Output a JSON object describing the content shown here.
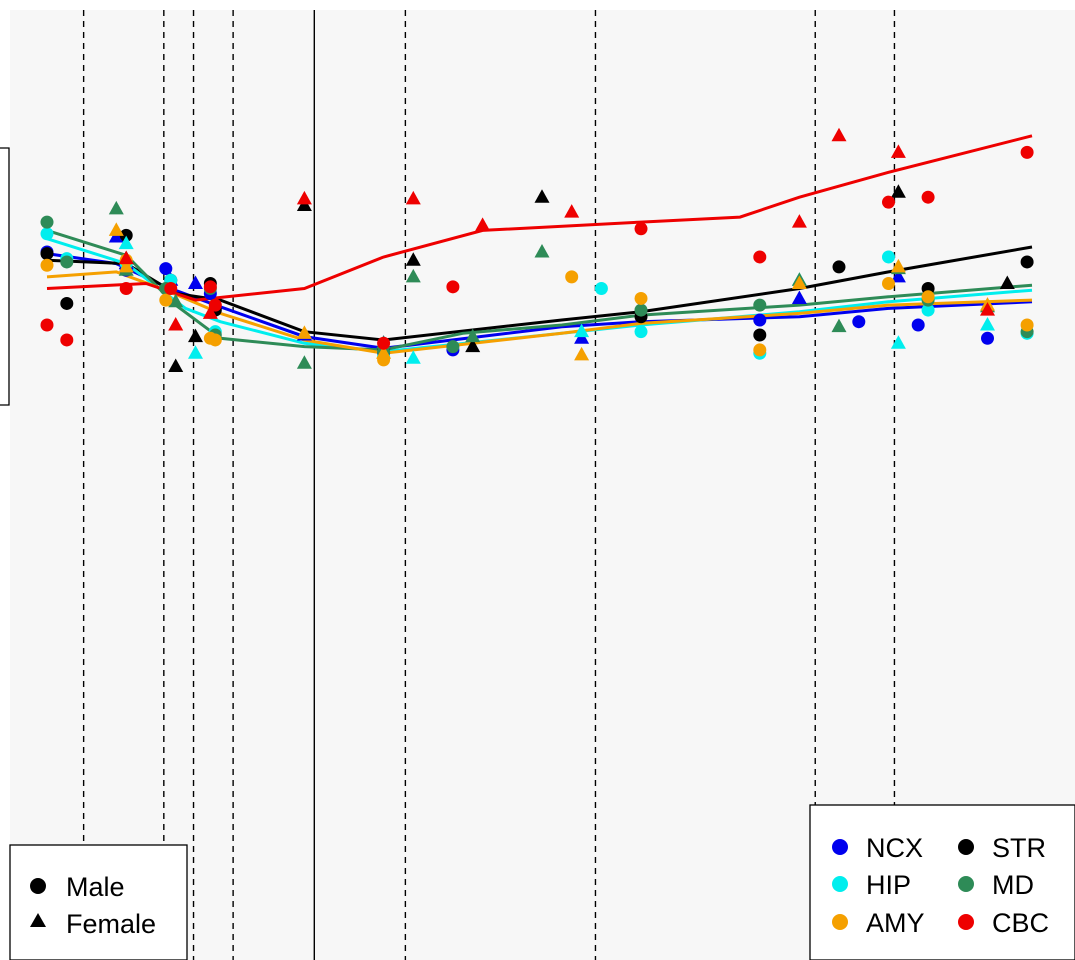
{
  "chart_data": {
    "type": "scatter",
    "title": "",
    "xlabel": "",
    "ylabel": "",
    "xlim": [
      0,
      1000
    ],
    "ylim": [
      -100,
      100
    ],
    "grid": false,
    "vlines_dashed": [
      37,
      118,
      148,
      188,
      362,
      554,
      776,
      856
    ],
    "vline_solid": 270,
    "shape_legend": {
      "placement": "bottom-left",
      "entries": [
        {
          "label": "Male",
          "shape": "circle"
        },
        {
          "label": "Female",
          "shape": "triangle"
        }
      ]
    },
    "color_legend": {
      "placement": "bottom-right",
      "entries": [
        {
          "label": "NCX",
          "color": "#0000ee"
        },
        {
          "label": "STR",
          "color": "#000000"
        },
        {
          "label": "HIP",
          "color": "#00eeee"
        },
        {
          "label": "MD",
          "color": "#2e8b57"
        },
        {
          "label": "AMY",
          "color": "#f5a000"
        },
        {
          "label": "CBC",
          "color": "#ee0000"
        }
      ]
    },
    "series": [
      {
        "name": "NCX",
        "color": "#0000ee",
        "trend": [
          [
            0,
            46
          ],
          [
            70,
            40
          ],
          [
            120,
            26
          ],
          [
            175,
            14
          ],
          [
            260,
            -4
          ],
          [
            340,
            -11
          ],
          [
            520,
            2
          ],
          [
            600,
            5
          ],
          [
            760,
            8
          ],
          [
            850,
            13
          ],
          [
            995,
            17
          ]
        ],
        "male": [
          [
            0,
            47
          ],
          [
            80,
            36
          ],
          [
            120,
            37
          ],
          [
            165,
            22
          ],
          [
            340,
            -14
          ],
          [
            410,
            -12
          ],
          [
            720,
            6
          ],
          [
            820,
            5
          ],
          [
            880,
            3
          ],
          [
            950,
            -5
          ]
        ],
        "female": [
          [
            70,
            56
          ],
          [
            80,
            40
          ],
          [
            125,
            30
          ],
          [
            150,
            28
          ],
          [
            260,
            -3
          ],
          [
            340,
            -8
          ],
          [
            540,
            -5
          ],
          [
            760,
            19
          ],
          [
            860,
            32
          ]
        ]
      },
      {
        "name": "STR",
        "color": "#000000",
        "trend": [
          [
            0,
            42
          ],
          [
            80,
            40
          ],
          [
            130,
            22
          ],
          [
            175,
            18
          ],
          [
            260,
            -1
          ],
          [
            340,
            -6
          ],
          [
            520,
            6
          ],
          [
            600,
            11
          ],
          [
            760,
            25
          ],
          [
            850,
            35
          ],
          [
            995,
            50
          ]
        ],
        "male": [
          [
            0,
            46
          ],
          [
            20,
            16
          ],
          [
            80,
            57
          ],
          [
            125,
            30
          ],
          [
            165,
            28
          ],
          [
            170,
            12
          ],
          [
            340,
            -11
          ],
          [
            600,
            8
          ],
          [
            720,
            -3
          ],
          [
            800,
            38
          ],
          [
            890,
            25
          ],
          [
            990,
            41
          ]
        ],
        "female": [
          [
            80,
            43
          ],
          [
            130,
            -22
          ],
          [
            150,
            -4
          ],
          [
            260,
            75
          ],
          [
            370,
            42
          ],
          [
            430,
            -10
          ],
          [
            500,
            80
          ],
          [
            860,
            83
          ],
          [
            970,
            28
          ]
        ]
      },
      {
        "name": "HIP",
        "color": "#00eeee",
        "trend": [
          [
            0,
            55
          ],
          [
            80,
            40
          ],
          [
            140,
            13
          ],
          [
            175,
            5
          ],
          [
            260,
            -8
          ],
          [
            340,
            -13
          ],
          [
            520,
            -2
          ],
          [
            600,
            3
          ],
          [
            760,
            11
          ],
          [
            850,
            17
          ],
          [
            995,
            24
          ]
        ],
        "male": [
          [
            0,
            58
          ],
          [
            20,
            43
          ],
          [
            80,
            40
          ],
          [
            125,
            30
          ],
          [
            170,
            -1
          ],
          [
            340,
            -16
          ],
          [
            560,
            25
          ],
          [
            600,
            -1
          ],
          [
            720,
            -14
          ],
          [
            850,
            44
          ],
          [
            890,
            12
          ],
          [
            990,
            -2
          ]
        ],
        "female": [
          [
            80,
            52
          ],
          [
            150,
            -14
          ],
          [
            370,
            -17
          ],
          [
            540,
            -1
          ],
          [
            760,
            30
          ],
          [
            860,
            -8
          ],
          [
            950,
            3
          ]
        ]
      },
      {
        "name": "MD",
        "color": "#2e8b57",
        "trend": [
          [
            0,
            60
          ],
          [
            80,
            45
          ],
          [
            130,
            15
          ],
          [
            175,
            -5
          ],
          [
            260,
            -10
          ],
          [
            340,
            -12
          ],
          [
            420,
            -2
          ],
          [
            520,
            3
          ],
          [
            600,
            9
          ],
          [
            760,
            15
          ],
          [
            850,
            20
          ],
          [
            995,
            27
          ]
        ],
        "male": [
          [
            0,
            65
          ],
          [
            20,
            41
          ],
          [
            120,
            25
          ],
          [
            165,
            25
          ],
          [
            170,
            -3
          ],
          [
            340,
            -13
          ],
          [
            410,
            -10
          ],
          [
            600,
            12
          ],
          [
            720,
            15
          ],
          [
            890,
            18
          ],
          [
            990,
            -1
          ]
        ],
        "female": [
          [
            70,
            73
          ],
          [
            80,
            36
          ],
          [
            130,
            17
          ],
          [
            260,
            -20
          ],
          [
            340,
            -8
          ],
          [
            370,
            32
          ],
          [
            430,
            -4
          ],
          [
            500,
            47
          ],
          [
            760,
            30
          ],
          [
            800,
            2
          ],
          [
            860,
            37
          ],
          [
            950,
            14
          ]
        ]
      },
      {
        "name": "AMY",
        "color": "#f5a000",
        "trend": [
          [
            0,
            32
          ],
          [
            70,
            35
          ],
          [
            120,
            24
          ],
          [
            175,
            10
          ],
          [
            260,
            -6
          ],
          [
            340,
            -14
          ],
          [
            520,
            -2
          ],
          [
            600,
            4
          ],
          [
            760,
            10
          ],
          [
            850,
            15
          ],
          [
            995,
            18
          ]
        ],
        "male": [
          [
            0,
            39
          ],
          [
            80,
            42
          ],
          [
            120,
            18
          ],
          [
            165,
            -5
          ],
          [
            170,
            -6
          ],
          [
            340,
            -18
          ],
          [
            530,
            32
          ],
          [
            600,
            19
          ],
          [
            720,
            -12
          ],
          [
            850,
            28
          ],
          [
            890,
            20
          ],
          [
            990,
            3
          ]
        ],
        "female": [
          [
            70,
            60
          ],
          [
            80,
            38
          ],
          [
            260,
            -2
          ],
          [
            340,
            -14
          ],
          [
            540,
            -15
          ],
          [
            760,
            28
          ],
          [
            860,
            38
          ],
          [
            950,
            15
          ]
        ]
      },
      {
        "name": "CBC",
        "color": "#ee0000",
        "trend": [
          [
            0,
            25
          ],
          [
            100,
            28
          ],
          [
            150,
            18
          ],
          [
            260,
            25
          ],
          [
            340,
            44
          ],
          [
            440,
            60
          ],
          [
            600,
            65
          ],
          [
            700,
            68
          ],
          [
            760,
            80
          ],
          [
            850,
            95
          ],
          [
            995,
            117
          ]
        ],
        "male": [
          [
            0,
            3
          ],
          [
            20,
            -6
          ],
          [
            80,
            25
          ],
          [
            125,
            25
          ],
          [
            165,
            26
          ],
          [
            170,
            15
          ],
          [
            340,
            -8
          ],
          [
            410,
            26
          ],
          [
            600,
            61
          ],
          [
            720,
            44
          ],
          [
            850,
            77
          ],
          [
            890,
            80
          ],
          [
            990,
            107
          ]
        ],
        "female": [
          [
            80,
            43
          ],
          [
            130,
            3
          ],
          [
            165,
            10
          ],
          [
            260,
            79
          ],
          [
            370,
            79
          ],
          [
            440,
            63
          ],
          [
            530,
            71
          ],
          [
            760,
            65
          ],
          [
            800,
            117
          ],
          [
            860,
            107
          ],
          [
            950,
            12
          ]
        ]
      }
    ]
  }
}
